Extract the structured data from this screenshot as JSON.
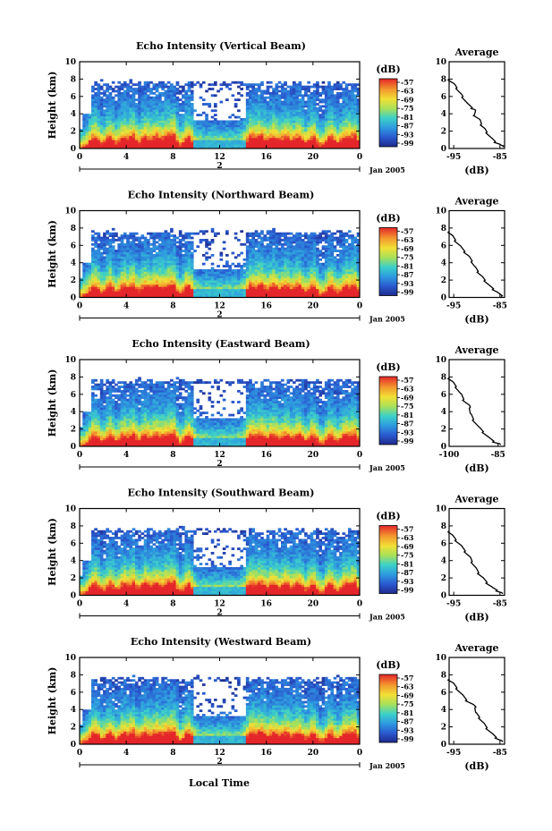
{
  "figure": {
    "xlabel_bottom": "Local Time",
    "date_label": "Jan 2005",
    "day_label": "2"
  },
  "chart_data": [
    {
      "type": "heatmap",
      "title": "Echo Intensity (Vertical Beam)",
      "ylabel": "Height (km)",
      "xticks": [
        "0",
        "4",
        "8",
        "12",
        "16",
        "20",
        "0"
      ],
      "yticks": [
        "0",
        "2",
        "4",
        "6",
        "8",
        "10"
      ],
      "xlim": [
        0,
        24
      ],
      "ylim": [
        0,
        10
      ],
      "colorbar": {
        "label": "(dB)",
        "ticks": [
          "-57",
          "-63",
          "-69",
          "-75",
          "-81",
          "-87",
          "-93",
          "-99"
        ]
      },
      "average": {
        "title": "Average",
        "xlabel": "(dB)",
        "xticks": [
          "-95",
          "-85"
        ],
        "xlim": [
          -96,
          -84
        ],
        "points": [
          [
            -96,
            8
          ],
          [
            -95,
            7.5
          ],
          [
            -94.3,
            7
          ],
          [
            -93.6,
            6.4
          ],
          [
            -93,
            6
          ],
          [
            -92,
            5.2
          ],
          [
            -91,
            4.7
          ],
          [
            -90.5,
            4.5
          ],
          [
            -90.5,
            3.9
          ],
          [
            -89.5,
            3.4
          ],
          [
            -89,
            2.8
          ],
          [
            -88.5,
            2.4
          ],
          [
            -87.8,
            1.9
          ],
          [
            -87,
            1.3
          ],
          [
            -86,
            0.8
          ],
          [
            -85,
            0.5
          ],
          [
            -84.2,
            0.3
          ]
        ]
      }
    },
    {
      "type": "heatmap",
      "title": "Echo Intensity (Northward Beam)",
      "ylabel": "Height (km)",
      "xticks": [
        "0",
        "4",
        "8",
        "12",
        "16",
        "20",
        "0"
      ],
      "yticks": [
        "0",
        "2",
        "4",
        "6",
        "8",
        "10"
      ],
      "xlim": [
        0,
        24
      ],
      "ylim": [
        0,
        10
      ],
      "colorbar": {
        "label": "(dB)",
        "ticks": [
          "-57",
          "-63",
          "-69",
          "-75",
          "-81",
          "-87",
          "-93",
          "-99"
        ]
      },
      "average": {
        "title": "Average",
        "xlabel": "(dB)",
        "xticks": [
          "-95",
          "-85"
        ],
        "xlim": [
          -96,
          -84
        ],
        "points": [
          [
            -96,
            7.6
          ],
          [
            -95.4,
            7.2
          ],
          [
            -94.6,
            6.6
          ],
          [
            -93.7,
            6
          ],
          [
            -92.6,
            5.3
          ],
          [
            -91.8,
            4.8
          ],
          [
            -91,
            4.2
          ],
          [
            -90.5,
            3.6
          ],
          [
            -89.7,
            3
          ],
          [
            -89,
            2.5
          ],
          [
            -88.2,
            2
          ],
          [
            -87.3,
            1.4
          ],
          [
            -86.4,
            1
          ],
          [
            -85.5,
            0.6
          ],
          [
            -84.5,
            0.2
          ]
        ]
      }
    },
    {
      "type": "heatmap",
      "title": "Echo Intensity (Eastward Beam)",
      "ylabel": "Height (km)",
      "xticks": [
        "0",
        "4",
        "8",
        "12",
        "16",
        "20",
        "0"
      ],
      "yticks": [
        "0",
        "2",
        "4",
        "6",
        "8",
        "10"
      ],
      "xlim": [
        0,
        24
      ],
      "ylim": [
        0,
        10
      ],
      "colorbar": {
        "label": "(dB)",
        "ticks": [
          "-57",
          "-63",
          "-69",
          "-75",
          "-81",
          "-87",
          "-93",
          "-99"
        ]
      },
      "average": {
        "title": "Average",
        "xlabel": "(dB)",
        "xticks": [
          "-100",
          "-85"
        ],
        "xlim": [
          -100,
          -83
        ],
        "points": [
          [
            -100,
            7.9
          ],
          [
            -99,
            7.5
          ],
          [
            -97.8,
            6.9
          ],
          [
            -96.5,
            6.1
          ],
          [
            -95.5,
            5.4
          ],
          [
            -94,
            4.8
          ],
          [
            -93.5,
            4.5
          ],
          [
            -93.5,
            3.8
          ],
          [
            -92.5,
            3.1
          ],
          [
            -91,
            2.3
          ],
          [
            -89.5,
            1.7
          ],
          [
            -88,
            1.1
          ],
          [
            -86.3,
            0.6
          ],
          [
            -84.5,
            0.3
          ]
        ]
      }
    },
    {
      "type": "heatmap",
      "title": "Echo Intensity (Southward Beam)",
      "ylabel": "Height (km)",
      "xticks": [
        "0",
        "4",
        "8",
        "12",
        "16",
        "20",
        "0"
      ],
      "yticks": [
        "0",
        "2",
        "4",
        "6",
        "8",
        "10"
      ],
      "xlim": [
        0,
        24
      ],
      "ylim": [
        0,
        10
      ],
      "colorbar": {
        "label": "(dB)",
        "ticks": [
          "-57",
          "-63",
          "-69",
          "-75",
          "-81",
          "-87",
          "-93",
          "-99"
        ]
      },
      "average": {
        "title": "Average",
        "xlabel": "(dB)",
        "xticks": [
          "-95",
          "-85"
        ],
        "xlim": [
          -96,
          -84
        ],
        "points": [
          [
            -96,
            7.4
          ],
          [
            -95.4,
            7
          ],
          [
            -94.5,
            6.4
          ],
          [
            -93.5,
            5.8
          ],
          [
            -92.5,
            5.1
          ],
          [
            -91.6,
            4.5
          ],
          [
            -91,
            3.9
          ],
          [
            -90.4,
            3.3
          ],
          [
            -89.6,
            2.6
          ],
          [
            -88.8,
            2.1
          ],
          [
            -87.8,
            1.5
          ],
          [
            -86.8,
            1
          ],
          [
            -85.6,
            0.6
          ],
          [
            -84.6,
            0.3
          ]
        ]
      }
    },
    {
      "type": "heatmap",
      "title": "Echo Intensity (Westward Beam)",
      "ylabel": "Height (km)",
      "xticks": [
        "0",
        "4",
        "8",
        "12",
        "16",
        "20",
        "0"
      ],
      "yticks": [
        "0",
        "2",
        "4",
        "6",
        "8",
        "10"
      ],
      "xlim": [
        0,
        24
      ],
      "ylim": [
        0,
        10
      ],
      "colorbar": {
        "label": "(dB)",
        "ticks": [
          "-57",
          "-63",
          "-69",
          "-75",
          "-81",
          "-87",
          "-93",
          "-99"
        ]
      },
      "average": {
        "title": "Average",
        "xlabel": "(dB)",
        "xticks": [
          "-95",
          "-85"
        ],
        "xlim": [
          -96,
          -84
        ],
        "points": [
          [
            -96,
            7.5
          ],
          [
            -95.2,
            7.1
          ],
          [
            -94.3,
            6.5
          ],
          [
            -93.3,
            5.8
          ],
          [
            -92.2,
            5.1
          ],
          [
            -90.8,
            4.6
          ],
          [
            -90.2,
            4.3
          ],
          [
            -90.3,
            3.7
          ],
          [
            -89.4,
            3.1
          ],
          [
            -88.6,
            2.5
          ],
          [
            -87.8,
            1.9
          ],
          [
            -86.8,
            1.3
          ],
          [
            -85.8,
            0.8
          ],
          [
            -84.6,
            0.4
          ]
        ]
      }
    }
  ]
}
